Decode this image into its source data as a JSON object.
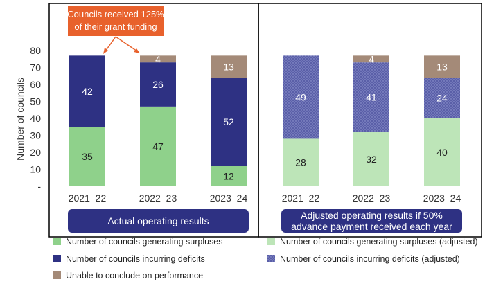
{
  "chart_data": {
    "type": "bar",
    "stacked": true,
    "ylabel": "Number of councils",
    "ylim": [
      0,
      80
    ],
    "yticks": [
      "-",
      "10",
      "20",
      "30",
      "40",
      "50",
      "60",
      "70",
      "80"
    ],
    "categories": [
      "2021–22",
      "2022–23",
      "2023–24"
    ],
    "panels": [
      {
        "caption": "Actual operating results",
        "series": [
          {
            "name": "Number of councils generating surpluses",
            "color": "#8fd18b",
            "values": [
              35,
              47,
              12
            ]
          },
          {
            "name": "Number of councils incurring deficits",
            "color": "#2e3183",
            "values": [
              42,
              26,
              52
            ]
          },
          {
            "name": "Unable to conclude on performance",
            "color": "#a48a78",
            "values": [
              0,
              4,
              13
            ]
          }
        ]
      },
      {
        "caption": "Adjusted operating results if 50% advance payment received each year",
        "caption_lines": [
          "Adjusted operating results if 50%",
          "advance payment received each year"
        ],
        "series": [
          {
            "name": "Number of councils generating surpluses (adjusted)",
            "color": "#bde5b8",
            "values": [
              28,
              32,
              40
            ]
          },
          {
            "name": "Number of councils incurring deficits (adjusted)",
            "color": "#5a5fa8",
            "values": [
              49,
              41,
              24
            ]
          },
          {
            "name": "Unable to conclude on performance",
            "color": "#a48a78",
            "values": [
              0,
              4,
              13
            ]
          }
        ]
      }
    ],
    "annotation": {
      "lines": [
        "Councils received 125%",
        "of their grant funding"
      ],
      "color": "#e8612c"
    },
    "legend": [
      {
        "label": "Number of councils generating surpluses",
        "color": "#8fd18b"
      },
      {
        "label": "Number of councils generating surpluses (adjusted)",
        "color": "#bde5b8"
      },
      {
        "label": "Number of councils incurring deficits",
        "color": "#2e3183"
      },
      {
        "label": "Number of councils incurring deficits (adjusted)",
        "color": "#5a5fa8",
        "pattern": true
      },
      {
        "label": "Unable to conclude on performance",
        "color": "#a48a78"
      }
    ]
  }
}
